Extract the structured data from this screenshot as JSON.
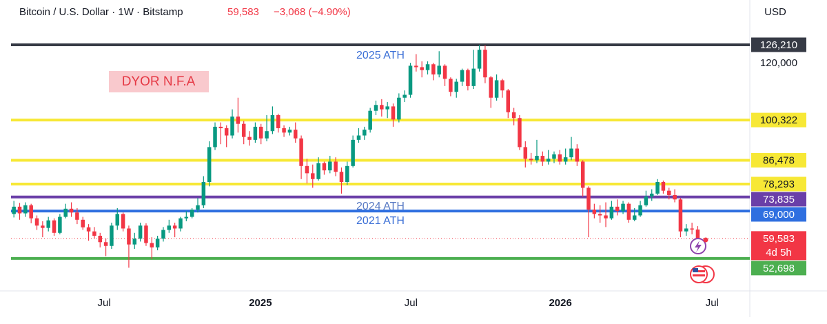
{
  "header": {
    "symbol": "Bitcoin / U.S. Dollar · 1W · Bitstamp",
    "change": "−3,068 (−4.90%)",
    "currency": "USD",
    "countdown": "4d 5h"
  },
  "chart_data": {
    "type": "candlestick",
    "up_color": "#089981",
    "down_color": "#f23645",
    "open": [
      68000,
      70500,
      68200,
      71000,
      66500,
      64000,
      63200,
      65800,
      61500,
      67000,
      69800,
      68500,
      66000,
      63400,
      62000,
      60500,
      58300,
      57000,
      64000,
      68000,
      63000,
      57500,
      59500,
      64000,
      58000,
      56500,
      59500,
      62500,
      64000,
      63000,
      66500,
      67000,
      69500,
      71000,
      79000,
      91000,
      98000,
      97500,
      95000,
      101500,
      99000,
      94500,
      93500,
      98000,
      94000,
      96500,
      102000,
      97500,
      96000,
      97000,
      94000,
      84500,
      82000,
      80000,
      85500,
      83000,
      86000,
      82500,
      79000,
      84500,
      93500,
      95000,
      97000,
      103500,
      105500,
      104000,
      105000,
      100500,
      108000,
      109000,
      119000,
      118500,
      117500,
      119500,
      116000,
      119000,
      114500,
      110000,
      113500,
      117500,
      112000,
      118000,
      124500,
      115000,
      108000,
      114000,
      110500,
      103000,
      101000,
      91000,
      87000,
      86500,
      88000,
      86000,
      87000,
      88500,
      86000,
      87500,
      90500,
      86000,
      77000,
      69500,
      68000,
      67500,
      66500,
      70500,
      69000,
      71500,
      66000,
      67500,
      71000,
      74000,
      75000,
      79000,
      76000,
      74500,
      73000,
      62000,
      63000,
      62651
    ],
    "high": [
      72500,
      71800,
      72000,
      71500,
      67500,
      65500,
      67000,
      66500,
      68000,
      71500,
      72000,
      70000,
      67000,
      64500,
      63500,
      61500,
      59500,
      65000,
      70000,
      68500,
      64000,
      61500,
      65000,
      64800,
      60000,
      60500,
      63500,
      66000,
      65000,
      67000,
      69000,
      70000,
      73500,
      81000,
      93000,
      99500,
      99500,
      98500,
      104000,
      108000,
      100000,
      96500,
      99500,
      99000,
      102000,
      105000,
      102500,
      98500,
      98000,
      99500,
      95000,
      87000,
      85000,
      87500,
      86000,
      88000,
      87500,
      84000,
      86000,
      95000,
      97500,
      98000,
      104500,
      107000,
      107500,
      106500,
      106000,
      109500,
      110500,
      120000,
      123000,
      120500,
      120500,
      120000,
      124000,
      119500,
      115000,
      114500,
      118000,
      118000,
      124500,
      126210,
      126000,
      115500,
      116000,
      114500,
      111000,
      104500,
      102000,
      93000,
      89000,
      93500,
      89500,
      90000,
      89500,
      90000,
      90500,
      94500,
      92000,
      86500,
      77500,
      71500,
      71000,
      72000,
      72500,
      73000,
      72500,
      72000,
      70000,
      72500,
      76000,
      76500,
      80000,
      79500,
      77000,
      76500,
      73500,
      64500,
      65000,
      63800
    ],
    "low": [
      66800,
      66000,
      67000,
      64800,
      62500,
      60000,
      62000,
      60500,
      61000,
      66500,
      67000,
      64500,
      62500,
      58800,
      59500,
      56500,
      53500,
      56000,
      62500,
      62000,
      49500,
      56000,
      58500,
      57000,
      52500,
      55500,
      58500,
      61500,
      60000,
      62000,
      65500,
      66500,
      68500,
      70000,
      77500,
      90000,
      92000,
      91000,
      94000,
      96000,
      92000,
      91500,
      92500,
      92000,
      93000,
      95500,
      96000,
      94500,
      95000,
      92500,
      80000,
      78500,
      77000,
      79500,
      81500,
      82000,
      81000,
      75000,
      78000,
      84000,
      92500,
      93500,
      96000,
      102000,
      101500,
      101000,
      98000,
      99500,
      106500,
      108000,
      117000,
      115000,
      116000,
      114000,
      115000,
      112000,
      108500,
      108000,
      112000,
      110500,
      111000,
      117000,
      113000,
      104500,
      107000,
      108000,
      101000,
      98500,
      90000,
      84000,
      85000,
      85500,
      84500,
      85000,
      85500,
      85000,
      85000,
      86500,
      84500,
      74000,
      60000,
      66500,
      65000,
      63500,
      66000,
      67500,
      68000,
      65000,
      65500,
      67000,
      70500,
      72500,
      74500,
      75000,
      73000,
      72000,
      60000,
      60500,
      61000,
      59200
    ],
    "close": [
      70500,
      68200,
      71000,
      66500,
      64000,
      63200,
      65800,
      61500,
      67000,
      69800,
      68500,
      66000,
      63400,
      62000,
      60500,
      58300,
      57000,
      64000,
      68000,
      63000,
      57500,
      59500,
      64000,
      58000,
      56500,
      59500,
      62500,
      64000,
      63000,
      66500,
      67000,
      69500,
      71000,
      79000,
      91000,
      98000,
      97500,
      95000,
      101500,
      99000,
      94500,
      93500,
      98000,
      94000,
      96500,
      102000,
      97500,
      96000,
      97000,
      94000,
      84500,
      82000,
      80000,
      85500,
      83000,
      86000,
      82500,
      79000,
      84500,
      93500,
      95000,
      97000,
      103500,
      105500,
      104000,
      105000,
      100500,
      108000,
      109000,
      119000,
      118500,
      117500,
      119500,
      116000,
      119000,
      114500,
      110000,
      113500,
      117500,
      112000,
      118000,
      124500,
      115000,
      108000,
      114000,
      110500,
      103000,
      101000,
      91000,
      87000,
      86500,
      88000,
      86000,
      87000,
      88500,
      86000,
      87500,
      90500,
      86000,
      77000,
      69500,
      68000,
      67500,
      66500,
      70500,
      69000,
      71500,
      66000,
      67500,
      71000,
      74000,
      75000,
      79000,
      76000,
      74500,
      73000,
      62000,
      63000,
      62651,
      59583
    ],
    "xlim": [
      -0.5,
      127.7
    ],
    "xticks": [
      {
        "value": 15.7,
        "label": "Jul"
      },
      {
        "value": 42.9,
        "label": "2025"
      },
      {
        "value": 69.1,
        "label": "Jul"
      },
      {
        "value": 95.1,
        "label": "2026"
      },
      {
        "value": 121.5,
        "label": "Jul"
      }
    ],
    "ylim": [
      42000,
      134500
    ],
    "yticks": [
      {
        "value": 120000,
        "label": "120,000"
      }
    ],
    "levels": [
      {
        "value": 126210,
        "label": "126,210",
        "color": "#363a45"
      },
      {
        "value": 100322,
        "label": "100,322",
        "color": "#f7e836"
      },
      {
        "value": 86478,
        "label": "86,478",
        "color": "#f7e836"
      },
      {
        "value": 78293,
        "label": "78,293",
        "color": "#f7e836"
      },
      {
        "value": 73835,
        "label": "73,835",
        "color": "#6a3fa8"
      },
      {
        "value": 69000,
        "label": "69,000",
        "color": "#2f6fe0"
      },
      {
        "value": 52698,
        "label": "52,698",
        "color": "#4caf50"
      }
    ],
    "last_price": {
      "value": 59583,
      "label": "59,583",
      "color": "#f23645"
    },
    "annotations": [
      "2025 ATH",
      "2024 ATH",
      "2021 ATH",
      "DYOR N.F.A"
    ]
  }
}
